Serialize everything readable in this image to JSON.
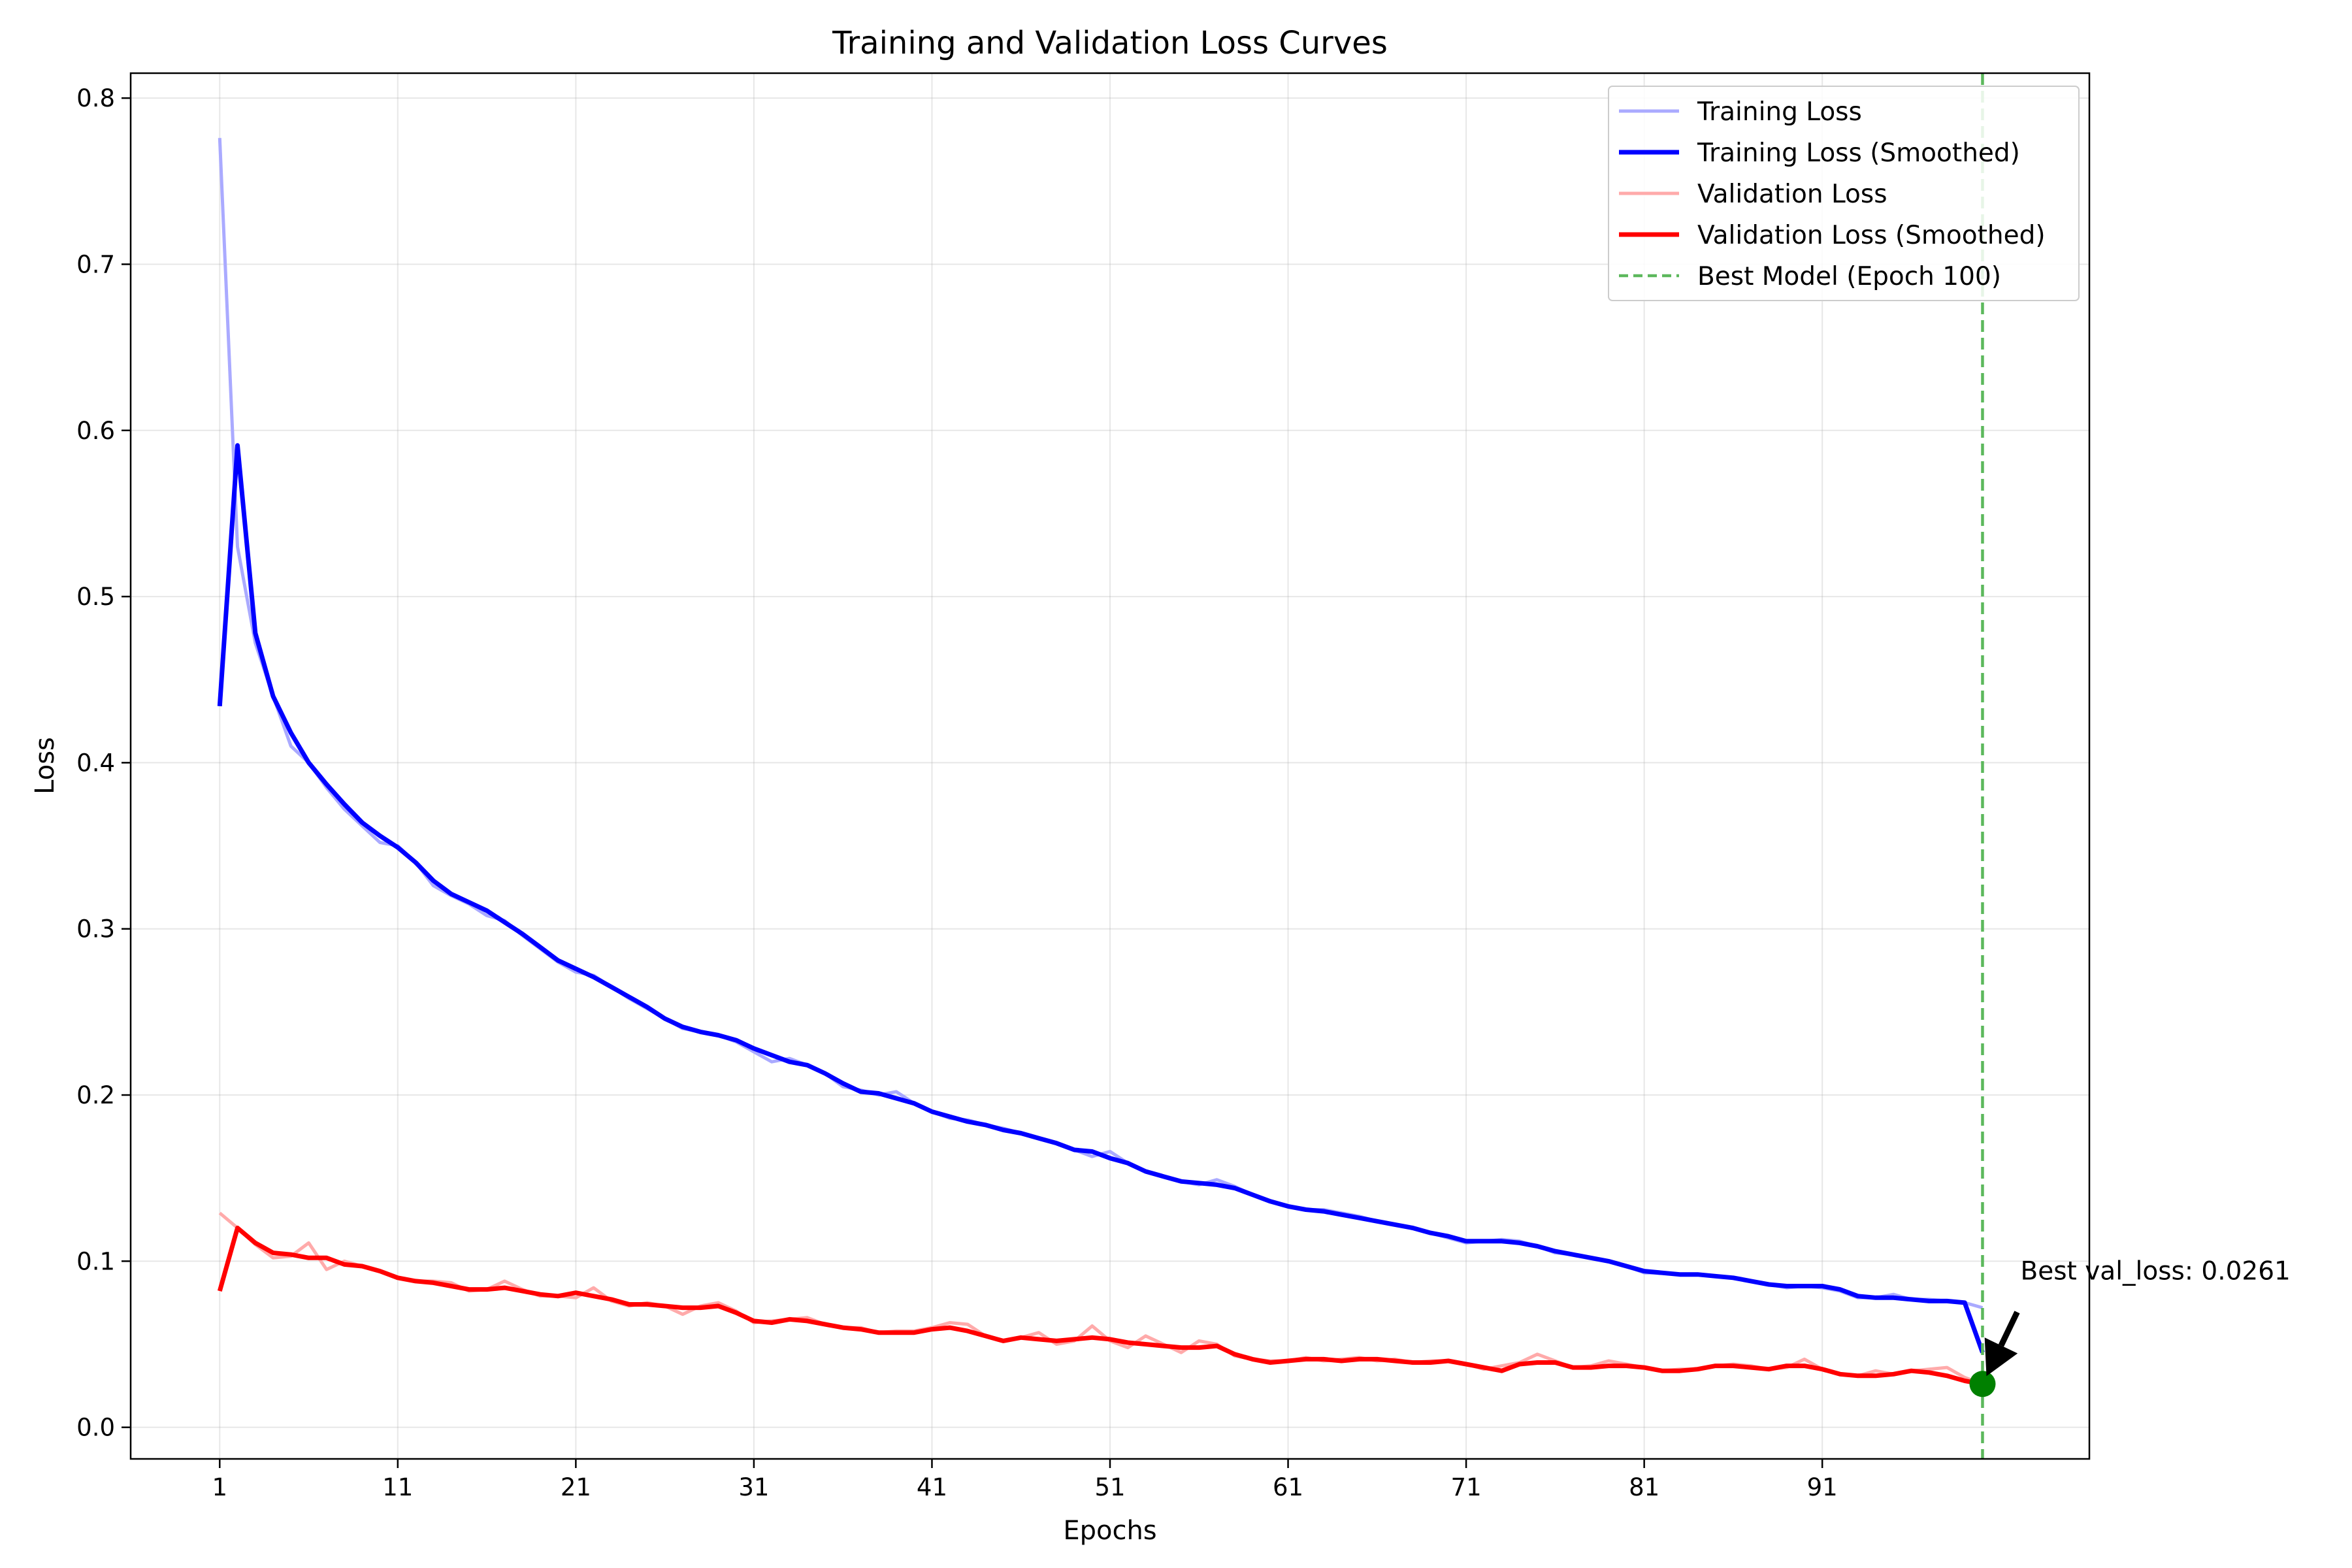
{
  "chart_data": {
    "type": "line",
    "title": "Training and Validation Loss Curves",
    "xlabel": "Epochs",
    "ylabel": "Loss",
    "xlim": [
      -4,
      106
    ],
    "ylim": [
      -0.019,
      0.815
    ],
    "x_ticks": [
      1,
      11,
      21,
      31,
      41,
      51,
      61,
      71,
      81,
      91
    ],
    "y_ticks": [
      0.0,
      0.1,
      0.2,
      0.3,
      0.4,
      0.5,
      0.6,
      0.7,
      0.8
    ],
    "y_tick_labels": [
      "0.0",
      "0.1",
      "0.2",
      "0.3",
      "0.4",
      "0.5",
      "0.6",
      "0.7",
      "0.8"
    ],
    "grid": true,
    "legend_position": "top-right",
    "series": [
      {
        "name": "Training Loss",
        "color": "#aaaaff",
        "style": "solid-thin",
        "x": [
          1,
          2,
          3,
          4,
          5,
          6,
          7,
          8,
          9,
          10,
          11,
          12,
          13,
          14,
          15,
          16,
          17,
          18,
          19,
          20,
          21,
          22,
          23,
          24,
          25,
          26,
          27,
          28,
          29,
          30,
          31,
          32,
          33,
          34,
          35,
          36,
          37,
          38,
          39,
          40,
          41,
          42,
          43,
          44,
          45,
          46,
          47,
          48,
          49,
          50,
          51,
          52,
          53,
          54,
          55,
          56,
          57,
          58,
          59,
          60,
          61,
          62,
          63,
          64,
          65,
          66,
          67,
          68,
          69,
          70,
          71,
          72,
          73,
          74,
          75,
          76,
          77,
          78,
          79,
          80,
          81,
          82,
          83,
          84,
          85,
          86,
          87,
          88,
          89,
          90,
          91,
          92,
          93,
          94,
          95,
          96,
          97,
          98,
          99,
          100
        ],
        "values": [
          0.776,
          0.53,
          0.472,
          0.44,
          0.41,
          0.4,
          0.385,
          0.372,
          0.362,
          0.352,
          0.35,
          0.34,
          0.326,
          0.32,
          0.315,
          0.308,
          0.305,
          0.296,
          0.288,
          0.28,
          0.274,
          0.272,
          0.265,
          0.258,
          0.252,
          0.246,
          0.24,
          0.238,
          0.236,
          0.232,
          0.226,
          0.22,
          0.222,
          0.218,
          0.213,
          0.205,
          0.203,
          0.2,
          0.202,
          0.195,
          0.19,
          0.186,
          0.185,
          0.182,
          0.18,
          0.177,
          0.174,
          0.171,
          0.167,
          0.163,
          0.166,
          0.159,
          0.154,
          0.151,
          0.148,
          0.146,
          0.149,
          0.145,
          0.14,
          0.136,
          0.133,
          0.131,
          0.131,
          0.129,
          0.127,
          0.124,
          0.122,
          0.12,
          0.117,
          0.114,
          0.111,
          0.112,
          0.113,
          0.112,
          0.109,
          0.105,
          0.104,
          0.102,
          0.1,
          0.097,
          0.093,
          0.093,
          0.092,
          0.092,
          0.091,
          0.09,
          0.088,
          0.086,
          0.084,
          0.085,
          0.084,
          0.082,
          0.078,
          0.078,
          0.08,
          0.077,
          0.077,
          0.076,
          0.075,
          0.072
        ]
      },
      {
        "name": "Training Loss (Smoothed)",
        "color": "#0000ff",
        "style": "solid-thick",
        "x": [
          1,
          2,
          3,
          4,
          5,
          6,
          7,
          8,
          9,
          10,
          11,
          12,
          13,
          14,
          15,
          16,
          17,
          18,
          19,
          20,
          21,
          22,
          23,
          24,
          25,
          26,
          27,
          28,
          29,
          30,
          31,
          32,
          33,
          34,
          35,
          36,
          37,
          38,
          39,
          40,
          41,
          42,
          43,
          44,
          45,
          46,
          47,
          48,
          49,
          50,
          51,
          52,
          53,
          54,
          55,
          56,
          57,
          58,
          59,
          60,
          61,
          62,
          63,
          64,
          65,
          66,
          67,
          68,
          69,
          70,
          71,
          72,
          73,
          74,
          75,
          76,
          77,
          78,
          79,
          80,
          81,
          82,
          83,
          84,
          85,
          86,
          87,
          88,
          89,
          90,
          91,
          92,
          93,
          94,
          95,
          96,
          97,
          98,
          99,
          100
        ],
        "values": [
          0.434,
          0.591,
          0.478,
          0.44,
          0.418,
          0.4,
          0.387,
          0.375,
          0.364,
          0.356,
          0.349,
          0.34,
          0.329,
          0.321,
          0.316,
          0.311,
          0.304,
          0.297,
          0.289,
          0.281,
          0.276,
          0.271,
          0.265,
          0.259,
          0.253,
          0.246,
          0.241,
          0.238,
          0.236,
          0.233,
          0.228,
          0.224,
          0.22,
          0.218,
          0.213,
          0.207,
          0.202,
          0.201,
          0.198,
          0.195,
          0.19,
          0.187,
          0.184,
          0.182,
          0.179,
          0.177,
          0.174,
          0.171,
          0.167,
          0.166,
          0.162,
          0.159,
          0.154,
          0.151,
          0.148,
          0.147,
          0.146,
          0.144,
          0.14,
          0.136,
          0.133,
          0.131,
          0.13,
          0.128,
          0.126,
          0.124,
          0.122,
          0.12,
          0.117,
          0.115,
          0.112,
          0.112,
          0.112,
          0.111,
          0.109,
          0.106,
          0.104,
          0.102,
          0.1,
          0.097,
          0.094,
          0.093,
          0.092,
          0.092,
          0.091,
          0.09,
          0.088,
          0.086,
          0.085,
          0.085,
          0.085,
          0.083,
          0.079,
          0.078,
          0.078,
          0.077,
          0.076,
          0.076,
          0.075,
          0.045
        ]
      },
      {
        "name": "Validation Loss",
        "color": "#ffaaaa",
        "style": "solid-thin",
        "x": [
          1,
          2,
          3,
          4,
          5,
          6,
          7,
          8,
          9,
          10,
          11,
          12,
          13,
          14,
          15,
          16,
          17,
          18,
          19,
          20,
          21,
          22,
          23,
          24,
          25,
          26,
          27,
          28,
          29,
          30,
          31,
          32,
          33,
          34,
          35,
          36,
          37,
          38,
          39,
          40,
          41,
          42,
          43,
          44,
          45,
          46,
          47,
          48,
          49,
          50,
          51,
          52,
          53,
          54,
          55,
          56,
          57,
          58,
          59,
          60,
          61,
          62,
          63,
          64,
          65,
          66,
          67,
          68,
          69,
          70,
          71,
          72,
          73,
          74,
          75,
          76,
          77,
          78,
          79,
          80,
          81,
          82,
          83,
          84,
          85,
          86,
          87,
          88,
          89,
          90,
          91,
          92,
          93,
          94,
          95,
          96,
          97,
          98,
          99,
          100
        ],
        "values": [
          0.129,
          0.12,
          0.11,
          0.102,
          0.103,
          0.111,
          0.095,
          0.1,
          0.097,
          0.094,
          0.09,
          0.088,
          0.088,
          0.087,
          0.082,
          0.083,
          0.088,
          0.083,
          0.079,
          0.079,
          0.078,
          0.084,
          0.076,
          0.073,
          0.075,
          0.073,
          0.068,
          0.073,
          0.075,
          0.07,
          0.063,
          0.064,
          0.065,
          0.066,
          0.062,
          0.06,
          0.06,
          0.057,
          0.058,
          0.058,
          0.06,
          0.063,
          0.062,
          0.055,
          0.052,
          0.054,
          0.057,
          0.05,
          0.052,
          0.061,
          0.052,
          0.048,
          0.055,
          0.05,
          0.045,
          0.052,
          0.05,
          0.043,
          0.041,
          0.04,
          0.04,
          0.042,
          0.04,
          0.041,
          0.042,
          0.04,
          0.041,
          0.039,
          0.04,
          0.04,
          0.038,
          0.035,
          0.037,
          0.039,
          0.044,
          0.04,
          0.036,
          0.037,
          0.04,
          0.038,
          0.036,
          0.034,
          0.035,
          0.035,
          0.037,
          0.038,
          0.037,
          0.035,
          0.036,
          0.041,
          0.035,
          0.032,
          0.031,
          0.034,
          0.032,
          0.034,
          0.035,
          0.036,
          0.03,
          0.026
        ]
      },
      {
        "name": "Validation Loss (Smoothed)",
        "color": "#ff0000",
        "style": "solid-thick",
        "x": [
          1,
          2,
          3,
          4,
          5,
          6,
          7,
          8,
          9,
          10,
          11,
          12,
          13,
          14,
          15,
          16,
          17,
          18,
          19,
          20,
          21,
          22,
          23,
          24,
          25,
          26,
          27,
          28,
          29,
          30,
          31,
          32,
          33,
          34,
          35,
          36,
          37,
          38,
          39,
          40,
          41,
          42,
          43,
          44,
          45,
          46,
          47,
          48,
          49,
          50,
          51,
          52,
          53,
          54,
          55,
          56,
          57,
          58,
          59,
          60,
          61,
          62,
          63,
          64,
          65,
          66,
          67,
          68,
          69,
          70,
          71,
          72,
          73,
          74,
          75,
          76,
          77,
          78,
          79,
          80,
          81,
          82,
          83,
          84,
          85,
          86,
          87,
          88,
          89,
          90,
          91,
          92,
          93,
          94,
          95,
          96,
          97,
          98,
          99,
          100
        ],
        "values": [
          0.082,
          0.12,
          0.111,
          0.105,
          0.104,
          0.102,
          0.102,
          0.098,
          0.097,
          0.094,
          0.09,
          0.088,
          0.087,
          0.085,
          0.083,
          0.083,
          0.084,
          0.082,
          0.08,
          0.079,
          0.081,
          0.079,
          0.077,
          0.074,
          0.074,
          0.073,
          0.072,
          0.072,
          0.073,
          0.069,
          0.064,
          0.063,
          0.065,
          0.064,
          0.062,
          0.06,
          0.059,
          0.057,
          0.057,
          0.057,
          0.059,
          0.06,
          0.058,
          0.055,
          0.052,
          0.054,
          0.053,
          0.052,
          0.053,
          0.054,
          0.053,
          0.051,
          0.05,
          0.049,
          0.048,
          0.048,
          0.049,
          0.044,
          0.041,
          0.039,
          0.04,
          0.041,
          0.041,
          0.04,
          0.041,
          0.041,
          0.04,
          0.039,
          0.039,
          0.04,
          0.038,
          0.036,
          0.034,
          0.038,
          0.039,
          0.039,
          0.036,
          0.036,
          0.037,
          0.037,
          0.036,
          0.034,
          0.034,
          0.035,
          0.037,
          0.037,
          0.036,
          0.035,
          0.037,
          0.037,
          0.035,
          0.032,
          0.031,
          0.031,
          0.032,
          0.034,
          0.033,
          0.031,
          0.028,
          0.026
        ]
      }
    ],
    "best_model": {
      "legend_label": "Best Model (Epoch 100)",
      "epoch": 100,
      "val_loss": 0.0261,
      "color": "#5cb85c",
      "marker_color": "#008000",
      "annotation": "Best val_loss: 0.0261"
    }
  }
}
